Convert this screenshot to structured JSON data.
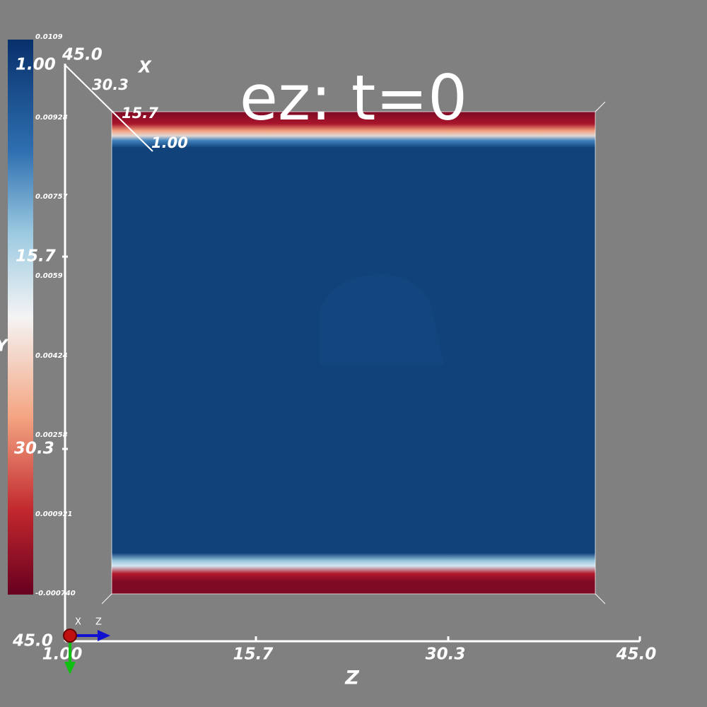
{
  "title": "ez: t=0",
  "colorbar": {
    "labels": [
      "0.0109",
      "0.00928",
      "0.00757",
      "0.0059",
      "0.00424",
      "0.00258",
      "0.000921",
      "-0.000740"
    ]
  },
  "y_axis": {
    "title": "Y",
    "labels": [
      "1.00",
      "15.7",
      "30.3",
      "45.0"
    ]
  },
  "x_axis": {
    "title": "X",
    "labels": [
      "45.0",
      "30.3",
      "15.7",
      "1.00"
    ]
  },
  "z_axis": {
    "title": "Z",
    "labels": [
      "1.00",
      "15.7",
      "30.3",
      "45.0"
    ]
  },
  "triad": {
    "labels": [
      "X",
      "Z"
    ]
  }
}
